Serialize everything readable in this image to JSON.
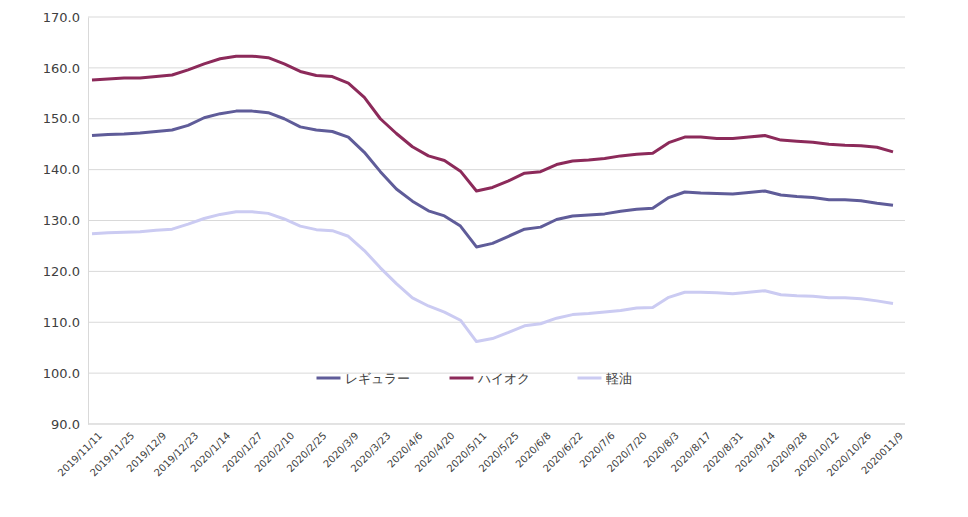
{
  "chart_data": {
    "type": "line",
    "categories": [
      "2019/11/11",
      null,
      "2019/11/25",
      null,
      "2019/12/9",
      null,
      "2019/12/23",
      null,
      "2020/1/14",
      null,
      "2020/1/27",
      null,
      "2020/2/10",
      null,
      "2020/2/25",
      null,
      "2020/3/9",
      null,
      "2020/3/23",
      null,
      "2020/4/6",
      null,
      "2020/4/20",
      null,
      "2020/5/11",
      null,
      "2020/5/25",
      null,
      "2020/6/8",
      null,
      "2020/6/22",
      null,
      "2020/7/6",
      null,
      "2020/7/20",
      null,
      "2020/8/3",
      null,
      "2020/8/17",
      null,
      "2020/8/31",
      null,
      "2020/9/14",
      null,
      "2020/9/28",
      null,
      "2020/10/12",
      null,
      "2020/10/26",
      null,
      "2020011/9"
    ],
    "series": [
      {
        "name": "レギュラー",
        "color": "#5f5c99",
        "values": [
          146.7,
          146.9,
          147.0,
          147.2,
          147.5,
          147.8,
          148.7,
          150.2,
          151.0,
          151.5,
          151.5,
          151.2,
          150.0,
          148.4,
          147.8,
          147.5,
          146.4,
          143.4,
          139.6,
          136.2,
          133.8,
          131.9,
          130.9,
          128.9,
          124.8,
          125.5,
          126.9,
          128.3,
          128.7,
          130.2,
          130.9,
          131.1,
          131.3,
          131.8,
          132.2,
          132.4,
          134.5,
          135.6,
          135.4,
          135.3,
          135.2,
          135.5,
          135.8,
          135.0,
          134.7,
          134.5,
          134.1,
          134.1,
          133.9,
          133.4,
          133.0
        ]
      },
      {
        "name": "ハイオク",
        "color": "#8c2a5a",
        "values": [
          157.6,
          157.8,
          158.0,
          158.0,
          158.3,
          158.6,
          159.6,
          160.8,
          161.8,
          162.3,
          162.3,
          162.0,
          160.8,
          159.3,
          158.5,
          158.3,
          157.0,
          154.2,
          150.0,
          147.1,
          144.5,
          142.7,
          141.8,
          139.7,
          135.8,
          136.5,
          137.8,
          139.3,
          139.6,
          141.0,
          141.7,
          141.9,
          142.2,
          142.7,
          143.0,
          143.2,
          145.3,
          146.4,
          146.4,
          146.1,
          146.1,
          146.4,
          146.7,
          145.8,
          145.6,
          145.4,
          145.0,
          144.8,
          144.7,
          144.4,
          143.5
        ]
      },
      {
        "name": "軽油",
        "color": "#cbcbf2",
        "values": [
          127.4,
          127.6,
          127.7,
          127.8,
          128.1,
          128.3,
          129.3,
          130.4,
          131.2,
          131.7,
          131.7,
          131.4,
          130.3,
          128.9,
          128.2,
          128.0,
          126.9,
          124.1,
          120.7,
          117.6,
          114.8,
          113.2,
          112.0,
          110.4,
          106.2,
          106.8,
          108.0,
          109.3,
          109.7,
          110.8,
          111.5,
          111.7,
          112.0,
          112.3,
          112.8,
          112.9,
          114.9,
          115.9,
          115.9,
          115.8,
          115.6,
          115.9,
          116.2,
          115.4,
          115.2,
          115.1,
          114.8,
          114.8,
          114.6,
          114.2,
          113.7
        ]
      }
    ],
    "ylim": [
      90,
      170
    ],
    "yticks": [
      {
        "value": 90,
        "label": "90.0"
      },
      {
        "value": 100,
        "label": "100.0"
      },
      {
        "value": 110,
        "label": "110.0"
      },
      {
        "value": 120,
        "label": "120.0"
      },
      {
        "value": 130,
        "label": "130.0"
      },
      {
        "value": 140,
        "label": "140.0"
      },
      {
        "value": 150,
        "label": "150.0"
      },
      {
        "value": 160,
        "label": "160.0"
      },
      {
        "value": 170,
        "label": "170.0"
      }
    ],
    "grid": true,
    "legend": "bottom"
  }
}
